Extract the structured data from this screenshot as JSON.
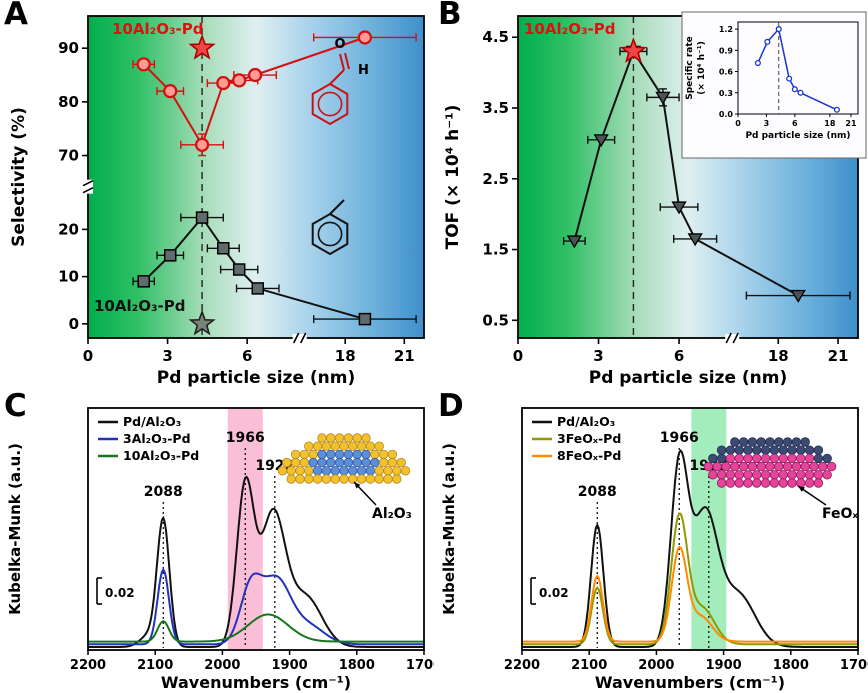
{
  "panels": {
    "A": {
      "letter": "A",
      "annotation_red": "10Al₂O₃-Pd",
      "annotation_black": "10Al₂O₃-Pd"
    },
    "B": {
      "letter": "B",
      "annotation_red": "10Al₂O₃-Pd"
    },
    "C": {
      "letter": "C"
    },
    "D": {
      "letter": "D"
    }
  },
  "chart_data": [
    {
      "id": "A",
      "type": "scatter",
      "render": "scatter-break",
      "xlabel": "Pd particle size (nm)",
      "ylabel": "Selectivity (%)",
      "x_ticks": [
        {
          "v": 0,
          "label": "0"
        },
        {
          "v": 3,
          "label": "3"
        },
        {
          "v": 6,
          "label": "6"
        },
        {
          "v": 18,
          "label": "18"
        },
        {
          "v": 21,
          "label": "21"
        }
      ],
      "y_ticks": [
        {
          "v": 0,
          "label": "0"
        },
        {
          "v": 10,
          "label": "10"
        },
        {
          "v": 20,
          "label": "20"
        },
        {
          "v": 70,
          "label": "70"
        },
        {
          "v": 80,
          "label": "80"
        },
        {
          "v": 90,
          "label": "90"
        }
      ],
      "x_segments": [
        {
          "domain": [
            0,
            7.6
          ],
          "frac": [
            0,
            0.6
          ]
        },
        {
          "domain": [
            16.2,
            22
          ],
          "frac": [
            0.66,
            1
          ]
        }
      ],
      "y_segments": [
        {
          "domain": [
            -3,
            27
          ],
          "frac": [
            0,
            0.44
          ]
        },
        {
          "domain": [
            66,
            96
          ],
          "frac": [
            0.5,
            1
          ]
        }
      ],
      "x_break_frac": 0.63,
      "y_break_frac": 0.47,
      "dashed_x": 4.3,
      "bg_gradient": [
        {
          "o": 0,
          "c": "#00ae4d"
        },
        {
          "o": 0.15,
          "c": "#32c066"
        },
        {
          "o": 0.35,
          "c": "#a9ddbb"
        },
        {
          "o": 0.5,
          "c": "#dfeff0"
        },
        {
          "o": 0.65,
          "c": "#abd4ec"
        },
        {
          "o": 0.85,
          "c": "#6cb0dc"
        },
        {
          "o": 1,
          "c": "#3e8fcb"
        }
      ],
      "series": [
        {
          "name": "benzaldehyde selectivity",
          "color": "#d40f0f",
          "marker": "circle",
          "marker_fill": "#ff9d94",
          "points": [
            [
              2.1,
              87,
              0.4,
              0
            ],
            [
              3.1,
              82,
              0.5,
              0
            ],
            [
              4.3,
              72,
              0.8,
              2
            ],
            [
              5.1,
              83.5,
              0.6,
              0
            ],
            [
              5.7,
              84,
              0.7,
              0
            ],
            [
              6.3,
              85,
              0.8,
              0
            ],
            [
              19,
              92,
              2.6,
              0
            ]
          ]
        },
        {
          "name": "toluene selectivity",
          "color": "#111111",
          "marker": "square",
          "marker_fill": "#606b6b",
          "points": [
            [
              2.1,
              9,
              0.4,
              0
            ],
            [
              3.1,
              14.5,
              0.5,
              0
            ],
            [
              4.3,
              22.5,
              0.8,
              0
            ],
            [
              5.1,
              16,
              0.6,
              0
            ],
            [
              5.7,
              11.5,
              0.7,
              0
            ],
            [
              6.4,
              7.5,
              0.8,
              0
            ],
            [
              19,
              1,
              2.6,
              0
            ]
          ]
        }
      ],
      "stars": [
        {
          "x": 4.3,
          "y": 90,
          "fill": "#f04545",
          "stroke": "#b00000"
        },
        {
          "x": 4.3,
          "y": 0,
          "fill": "#7a837a",
          "stroke": "#222222"
        }
      ]
    },
    {
      "id": "B",
      "type": "scatter",
      "render": "scatter-break",
      "xlabel": "Pd particle size (nm)",
      "ylabel": "TOF (× 10⁴ h⁻¹)",
      "x_ticks": [
        {
          "v": 0,
          "label": "0"
        },
        {
          "v": 3,
          "label": "3"
        },
        {
          "v": 6,
          "label": "6"
        },
        {
          "v": 18,
          "label": "18"
        },
        {
          "v": 21,
          "label": "21"
        }
      ],
      "y_ticks": [
        {
          "v": 0.5,
          "label": "0.5"
        },
        {
          "v": 1.5,
          "label": "1.5"
        },
        {
          "v": 2.5,
          "label": "2.5"
        },
        {
          "v": 3.5,
          "label": "3.5"
        },
        {
          "v": 4.5,
          "label": "4.5"
        }
      ],
      "x_segments": [
        {
          "domain": [
            0,
            7.6
          ],
          "frac": [
            0,
            0.6
          ]
        },
        {
          "domain": [
            16.2,
            22
          ],
          "frac": [
            0.66,
            1
          ]
        }
      ],
      "y_segments": [
        {
          "domain": [
            0.25,
            4.8
          ],
          "frac": [
            0,
            1
          ]
        }
      ],
      "x_break_frac": 0.63,
      "dashed_x": 4.3,
      "bg_gradient": [
        {
          "o": 0,
          "c": "#00ae4d"
        },
        {
          "o": 0.15,
          "c": "#32c066"
        },
        {
          "o": 0.35,
          "c": "#a9ddbb"
        },
        {
          "o": 0.5,
          "c": "#dfeff0"
        },
        {
          "o": 0.65,
          "c": "#abd4ec"
        },
        {
          "o": 0.85,
          "c": "#6cb0dc"
        },
        {
          "o": 1,
          "c": "#3e8fcb"
        }
      ],
      "series": [
        {
          "name": "TOF",
          "color": "#111111",
          "marker": "triangle-down",
          "marker_fill": "#4b5254",
          "points": [
            [
              2.1,
              1.62,
              0.4,
              0
            ],
            [
              3.1,
              3.05,
              0.5,
              0
            ],
            [
              4.3,
              4.3,
              0.5,
              0
            ],
            [
              5.4,
              3.65,
              0.6,
              0.12
            ],
            [
              6.0,
              2.1,
              0.7,
              0
            ],
            [
              6.6,
              1.65,
              0.8,
              0
            ],
            [
              19,
              0.85,
              2.6,
              0
            ]
          ]
        }
      ],
      "stars": [
        {
          "x": 4.3,
          "y": 4.3,
          "fill": "#f04545",
          "stroke": "#b00000"
        }
      ],
      "inset": {
        "ylabel_line1": "Specific rate",
        "ylabel_line2": "(× 10⁴ h⁻¹)",
        "xlabel": "Pd particle size (nm)",
        "color": "#1a35cc",
        "dashed_x": 4.3,
        "y_ticks": [
          {
            "v": 0,
            "label": "0.0"
          },
          {
            "v": 0.3,
            "label": "0.3"
          },
          {
            "v": 0.6,
            "label": "0.6"
          },
          {
            "v": 0.9,
            "label": "0.9"
          },
          {
            "v": 1.2,
            "label": "1.2"
          }
        ],
        "x_ticks": [
          {
            "v": 0,
            "label": "0"
          },
          {
            "v": 3,
            "label": "3"
          },
          {
            "v": 6,
            "label": "6"
          },
          {
            "v": 18,
            "label": "18"
          },
          {
            "v": 21,
            "label": "21"
          }
        ],
        "points": [
          [
            2.1,
            0.72
          ],
          [
            3.1,
            1.02
          ],
          [
            4.3,
            1.2
          ],
          [
            5.4,
            0.5
          ],
          [
            6.0,
            0.35
          ],
          [
            6.6,
            0.3
          ],
          [
            19,
            0.06
          ]
        ]
      }
    },
    {
      "id": "C",
      "type": "line",
      "render": "spectra",
      "xlabel": "Wavenumbers (cm⁻¹)",
      "ylabel": "Kubelka-Munk (a.u.)",
      "x_range": [
        2200,
        1700
      ],
      "x_ticks": [
        {
          "v": 2200,
          "label": "2200"
        },
        {
          "v": 2100,
          "label": "2100"
        },
        {
          "v": 2000,
          "label": "2000"
        },
        {
          "v": 1900,
          "label": "1900"
        },
        {
          "v": 1800,
          "label": "1800"
        },
        {
          "v": 1700,
          "label": "1700"
        }
      ],
      "scale_bar": "0.02",
      "band": {
        "from": 1992,
        "to": 1940,
        "color": "#f9a8c9",
        "opacity": 0.75
      },
      "peak_labels": [
        {
          "x": 2088,
          "text": "2088"
        },
        {
          "x": 1966,
          "text": "1966"
        },
        {
          "x": 1922,
          "text": "1922"
        }
      ],
      "curves": [
        {
          "name": "Pd/Al₂O₃",
          "color": "#111111",
          "base": 0.0,
          "peaks": [
            [
              2088,
              0.56,
              13
            ],
            [
              2110,
              0.05,
              18
            ],
            [
              1966,
              0.7,
              18
            ],
            [
              1925,
              0.58,
              26
            ],
            [
              1876,
              0.22,
              34
            ]
          ]
        },
        {
          "name": "3Al₂O₃-Pd",
          "color": "#2233bb",
          "base": 0.012,
          "peaks": [
            [
              2088,
              0.33,
              12
            ],
            [
              1958,
              0.24,
              22
            ],
            [
              1920,
              0.28,
              30
            ],
            [
              1872,
              0.08,
              34
            ]
          ]
        },
        {
          "name": "10Al₂O₃-Pd",
          "color": "#17761a",
          "base": 0.024,
          "peaks": [
            [
              2088,
              0.09,
              12
            ],
            [
              1932,
              0.12,
              42
            ]
          ]
        }
      ],
      "inset_label": "Al₂O₃",
      "inset_colors": {
        "main": "#f2c12e",
        "main_stroke": "#b8891f",
        "core": "#5b8fd9",
        "core_stroke": "#33589b"
      }
    },
    {
      "id": "D",
      "type": "line",
      "render": "spectra",
      "xlabel": "Wavenumbers (cm⁻¹)",
      "ylabel": "Kubelka-Munk (a.u.)",
      "x_range": [
        2200,
        1700
      ],
      "x_ticks": [
        {
          "v": 2200,
          "label": "2200"
        },
        {
          "v": 2100,
          "label": "2100"
        },
        {
          "v": 2000,
          "label": "2000"
        },
        {
          "v": 1900,
          "label": "1900"
        },
        {
          "v": 1800,
          "label": "1800"
        },
        {
          "v": 1700,
          "label": "1700"
        }
      ],
      "scale_bar": "0.02",
      "band": {
        "from": 1948,
        "to": 1896,
        "color": "#8ce8ad",
        "opacity": 0.8
      },
      "peak_labels": [
        {
          "x": 2088,
          "text": "2088"
        },
        {
          "x": 1966,
          "text": "1966"
        },
        {
          "x": 1922,
          "text": "1922"
        }
      ],
      "curves": [
        {
          "name": "Pd/Al₂O₃",
          "color": "#111111",
          "base": 0.0,
          "peaks": [
            [
              2088,
              0.54,
              13
            ],
            [
              1966,
              0.78,
              18
            ],
            [
              1928,
              0.58,
              27
            ],
            [
              1878,
              0.23,
              35
            ]
          ]
        },
        {
          "name": "3FeOₓ-Pd",
          "color": "#8f9a00",
          "base": 0.012,
          "peaks": [
            [
              2088,
              0.25,
              12
            ],
            [
              1966,
              0.55,
              17
            ],
            [
              1932,
              0.16,
              26
            ]
          ]
        },
        {
          "name": "8FeOₓ-Pd",
          "color": "#ff8a00",
          "base": 0.024,
          "peaks": [
            [
              2088,
              0.29,
              12
            ],
            [
              1966,
              0.4,
              16
            ],
            [
              1934,
              0.11,
              24
            ]
          ]
        }
      ],
      "inset_label": "FeOₓ",
      "inset_colors": {
        "main": "#e8439a",
        "main_stroke": "#8c1f5e",
        "core": "#3c4a74",
        "core_stroke": "#222c4e"
      }
    }
  ]
}
